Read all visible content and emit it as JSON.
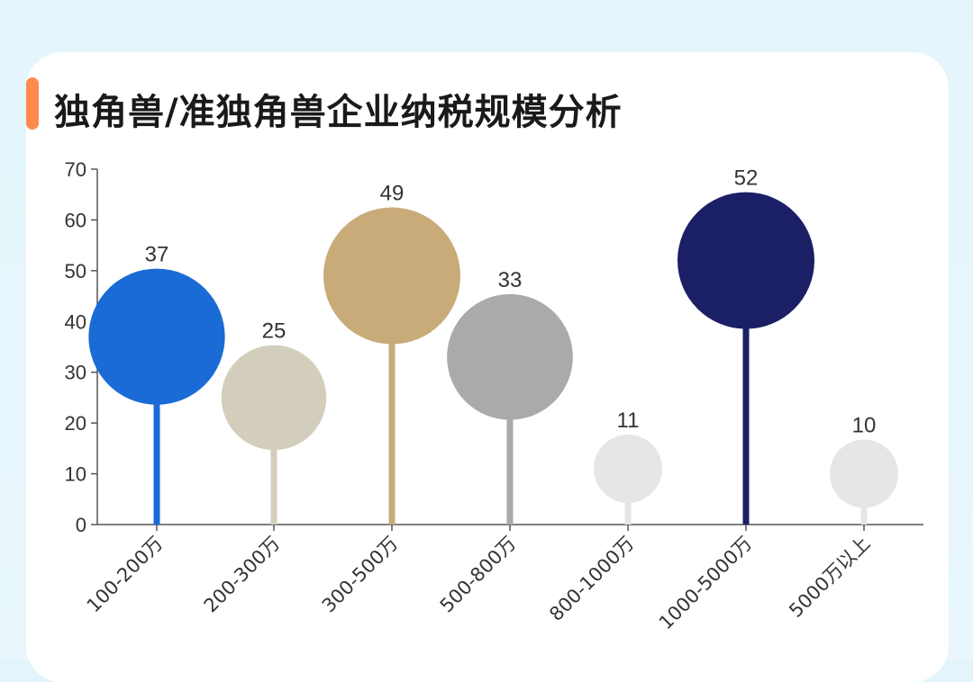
{
  "title": "独角兽/准独角兽企业纳税规模分析",
  "chart_data": {
    "type": "bar",
    "style": "lollipop",
    "title": "独角兽/准独角兽企业纳税规模分析",
    "xlabel": "",
    "ylabel": "",
    "ylim": [
      0,
      70
    ],
    "yticks": [
      0,
      10,
      20,
      30,
      40,
      50,
      60,
      70
    ],
    "categories": [
      "100-200万",
      "200-300万",
      "300-500万",
      "500-800万",
      "800-1000万",
      "1000-5000万",
      "5000万以上"
    ],
    "values": [
      37,
      25,
      49,
      33,
      11,
      52,
      10
    ],
    "colors": [
      "#1a6bd6",
      "#d3cdbc",
      "#c9ab7a",
      "#aaaaaa",
      "#e6e6e6",
      "#1a1f66",
      "#e6e6e6"
    ],
    "grid": false,
    "legend": "none"
  }
}
